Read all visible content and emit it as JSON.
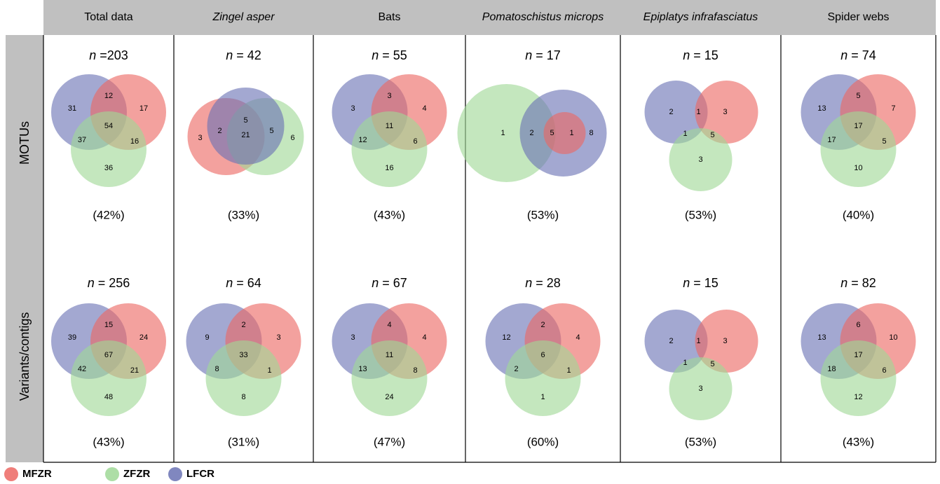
{
  "n_symbol": "n",
  "columns": [
    {
      "title": "Total data",
      "italic": false
    },
    {
      "title": "Zingel asper",
      "italic": true
    },
    {
      "title": "Bats",
      "italic": false
    },
    {
      "title": "Pomatoschistus microps",
      "italic": true
    },
    {
      "title": "Epiplatys infrafasciatus",
      "italic": true
    },
    {
      "title": "Spider webs",
      "italic": false
    }
  ],
  "rows": [
    {
      "label": "MOTUs",
      "cells": [
        {
          "n": "=203",
          "regions": [
            31,
            12,
            17,
            54,
            37,
            16,
            36
          ],
          "percent": "(42%)"
        },
        {
          "n": "= 42",
          "regions": [
            3,
            5,
            2,
            21,
            5,
            6
          ],
          "percent": "(33%)"
        },
        {
          "n": "= 55",
          "regions": [
            3,
            3,
            4,
            11,
            12,
            6,
            16
          ],
          "percent": "(43%)"
        },
        {
          "n": "= 17",
          "regions": [
            1,
            2,
            5,
            1,
            8
          ],
          "percent": "(53%)"
        },
        {
          "n": "= 15",
          "regions": [
            2,
            1,
            3,
            1,
            5,
            3
          ],
          "percent": "(53%)"
        },
        {
          "n": "= 74",
          "regions": [
            13,
            5,
            7,
            17,
            17,
            5,
            10
          ],
          "percent": "(40%)"
        }
      ]
    },
    {
      "label": "Variants/contigs",
      "cells": [
        {
          "n": "= 256",
          "regions": [
            39,
            15,
            24,
            67,
            42,
            21,
            48
          ],
          "percent": "(43%)"
        },
        {
          "n": "= 64",
          "regions": [
            9,
            2,
            3,
            33,
            8,
            1,
            8
          ],
          "percent": "(31%)"
        },
        {
          "n": "= 67",
          "regions": [
            3,
            4,
            4,
            11,
            13,
            8,
            24
          ],
          "percent": "(47%)"
        },
        {
          "n": "= 28",
          "regions": [
            12,
            2,
            4,
            6,
            2,
            1,
            1
          ],
          "percent": "(60%)"
        },
        {
          "n": "= 15",
          "regions": [
            2,
            1,
            3,
            1,
            5,
            3
          ],
          "percent": "(53%)"
        },
        {
          "n": "= 82",
          "regions": [
            13,
            6,
            10,
            17,
            18,
            6,
            12
          ],
          "percent": "(43%)"
        }
      ]
    }
  ],
  "legend": [
    {
      "name": "MFZR",
      "color": "#ec6763"
    },
    {
      "name": "ZFZR",
      "color": "#9fd896"
    },
    {
      "name": "LFCR",
      "color": "#6a72b4"
    }
  ]
}
